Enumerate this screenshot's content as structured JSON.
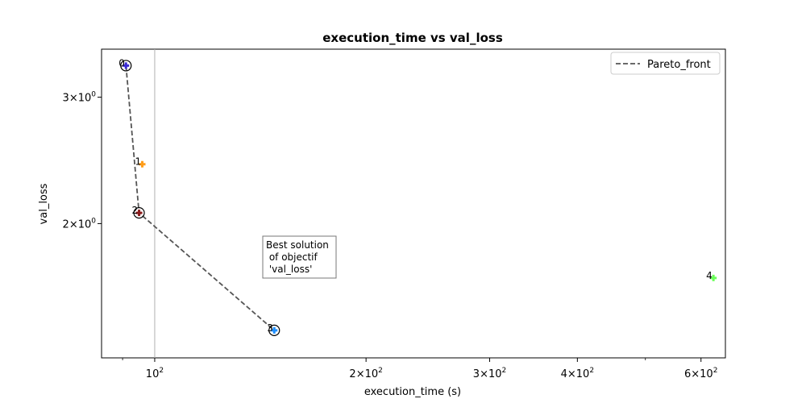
{
  "chart_data": {
    "type": "scatter",
    "title": "execution_time vs val_loss",
    "xlabel": "execution_time (s)",
    "ylabel": "val_loss",
    "xscale": "log",
    "yscale": "log",
    "xlim": [
      84,
      650
    ],
    "ylim": [
      1.3,
      3.5
    ],
    "x_ticks": [
      {
        "value": 100,
        "label": "10^2"
      },
      {
        "value": 200,
        "label": "2×10^2"
      },
      {
        "value": 300,
        "label": "3×10^2"
      },
      {
        "value": 400,
        "label": "4×10^2"
      },
      {
        "value": 600,
        "label": "6×10^2"
      }
    ],
    "y_ticks": [
      {
        "value": 2,
        "label": "2×10^0"
      },
      {
        "value": 3,
        "label": "3×10^0"
      }
    ],
    "x_vline": 100,
    "points": [
      {
        "label": "0",
        "x": 91,
        "y": 3.32,
        "color": "#3b2bd6",
        "pareto": true
      },
      {
        "label": "1",
        "x": 96,
        "y": 2.42,
        "color": "#ff9d1a",
        "pareto": false
      },
      {
        "label": "2",
        "x": 95,
        "y": 2.07,
        "color": "#8b1a1a",
        "pareto": true
      },
      {
        "label": "3",
        "x": 148,
        "y": 1.42,
        "color": "#1e8fff",
        "pareto": true
      },
      {
        "label": "4",
        "x": 625,
        "y": 1.68,
        "color": "#6bff5a",
        "pareto": false
      }
    ],
    "pareto_front": {
      "name": "Pareto_front",
      "color": "#555555"
    },
    "legend": {
      "entries": [
        "Pareto_front"
      ],
      "position": "top-right"
    },
    "annotation": {
      "lines": [
        "Best solution",
        " of objectif",
        " 'val_loss'"
      ]
    }
  }
}
